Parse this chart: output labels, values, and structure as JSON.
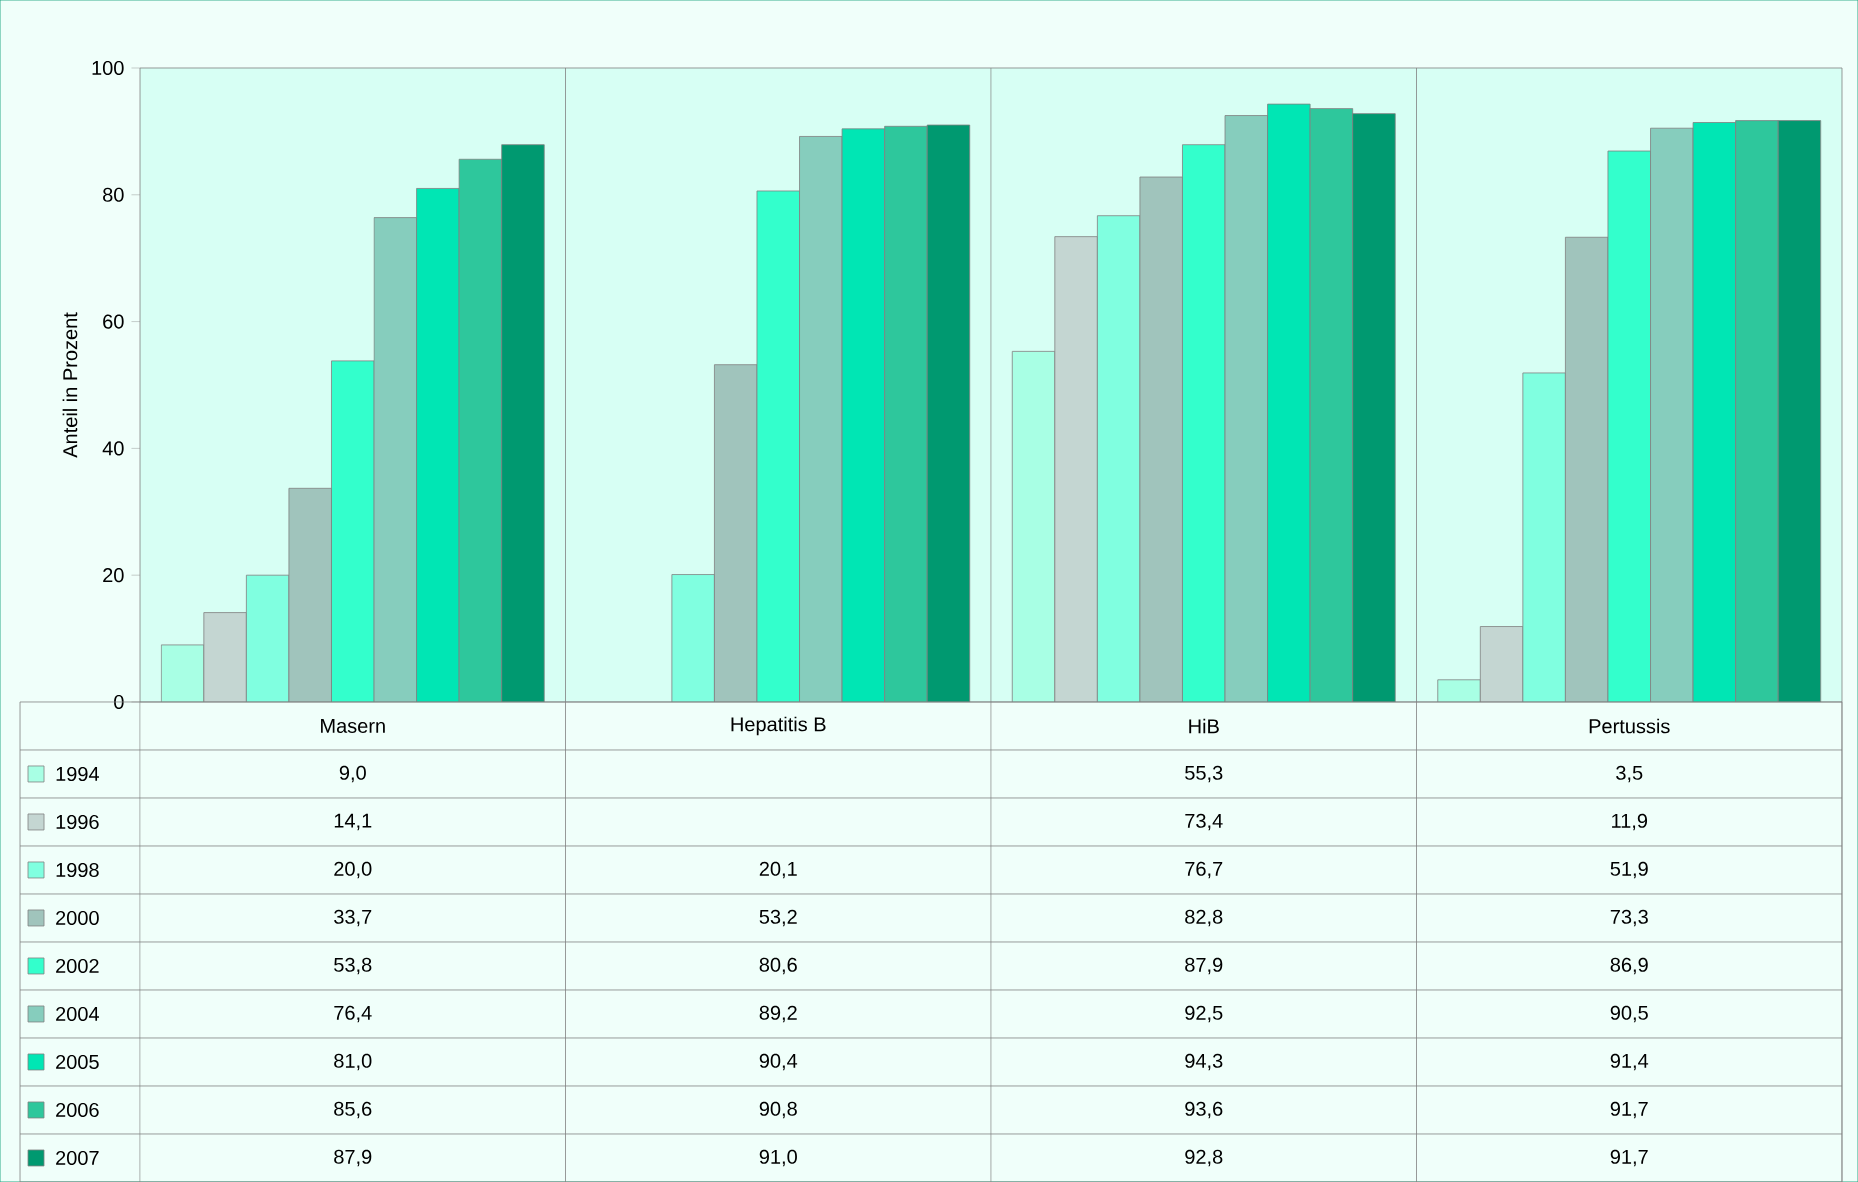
{
  "chart_data": {
    "type": "bar",
    "ylabel": "Anteil in Prozent",
    "categories": [
      "Masern",
      "Hepatitis B",
      "HiB",
      "Pertussis"
    ],
    "ylim": [
      0,
      100
    ],
    "yticks": [
      0,
      20,
      40,
      60,
      80,
      100
    ],
    "grid": "x",
    "legend": "bottom",
    "series": [
      {
        "name": "1994",
        "color": "#a8ffe4",
        "values": [
          9.0,
          null,
          55.3,
          3.5
        ],
        "value_labels": [
          "9,0",
          null,
          "55,3",
          "3,5"
        ]
      },
      {
        "name": "1996",
        "color": "#c4d6d2",
        "values": [
          14.1,
          null,
          73.4,
          11.9
        ],
        "value_labels": [
          "14,1",
          null,
          "73,4",
          "11,9"
        ]
      },
      {
        "name": "1998",
        "color": "#80ffe0",
        "values": [
          20.0,
          20.1,
          76.7,
          51.9
        ],
        "value_labels": [
          "20,0",
          "20,1",
          "76,7",
          "51,9"
        ]
      },
      {
        "name": "2000",
        "color": "#a0c4bc",
        "values": [
          33.7,
          53.2,
          82.8,
          73.3
        ],
        "value_labels": [
          "33,7",
          "53,2",
          "82,8",
          "73,3"
        ]
      },
      {
        "name": "2002",
        "color": "#33ffcc",
        "values": [
          53.8,
          80.6,
          87.9,
          86.9
        ],
        "value_labels": [
          "53,8",
          "80,6",
          "87,9",
          "86,9"
        ]
      },
      {
        "name": "2004",
        "color": "#86cdbd",
        "values": [
          76.4,
          89.2,
          92.5,
          90.5
        ],
        "value_labels": [
          "76,4",
          "89,2",
          "92,5",
          "90,5"
        ]
      },
      {
        "name": "2005",
        "color": "#00e6b4",
        "values": [
          81.0,
          90.4,
          94.3,
          91.4
        ],
        "value_labels": [
          "81,0",
          "90,4",
          "94,3",
          "91,4"
        ]
      },
      {
        "name": "2006",
        "color": "#2ec79c",
        "values": [
          85.6,
          90.8,
          93.6,
          91.7
        ],
        "value_labels": [
          "85,6",
          "90,8",
          "93,6",
          "91,7"
        ]
      },
      {
        "name": "2007",
        "color": "#009970",
        "values": [
          87.9,
          91.0,
          92.8,
          91.7
        ],
        "value_labels": [
          "87,9",
          "91,0",
          "92,8",
          "91,7"
        ]
      }
    ]
  }
}
